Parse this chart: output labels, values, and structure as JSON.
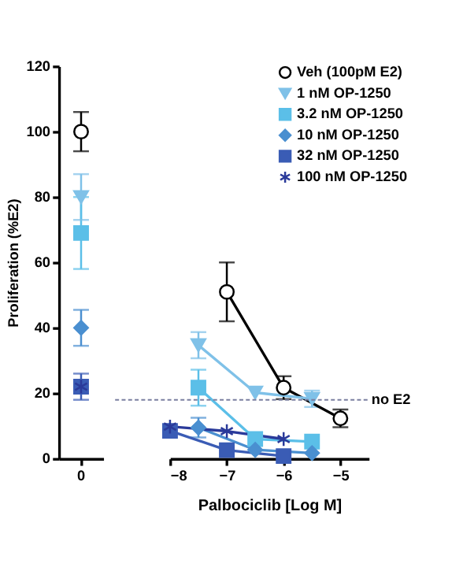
{
  "chart_data": [
    {
      "type": "scatter",
      "ylabel": "Proliferation (%E2)",
      "categories": [
        "0"
      ],
      "ylim": [
        0,
        120
      ],
      "yticks": [
        0,
        20,
        40,
        60,
        80,
        100,
        120
      ],
      "grid": false,
      "tick_labels": "xy",
      "series": [
        {
          "color": "#000000",
          "marker": "circle",
          "values": [
            100
          ],
          "errors": [
            6
          ]
        },
        {
          "color": "#7fc1e8",
          "marker": "triangle",
          "values": [
            80
          ],
          "errors": [
            7
          ]
        },
        {
          "color": "#5bbfe8",
          "marker": "square",
          "values": [
            69
          ],
          "errors": [
            11
          ]
        },
        {
          "color": "#4a8fd0",
          "marker": "diamond",
          "values": [
            40
          ],
          "errors": [
            5.5
          ]
        },
        {
          "color": "#3a5cb5",
          "marker": "square",
          "values": [
            22
          ],
          "errors": [
            4
          ]
        },
        {
          "color": "#2a3a9a",
          "marker": "cross",
          "values": [
            22
          ],
          "errors": [
            null
          ]
        }
      ]
    },
    {
      "type": "line",
      "xlabel": "Palbociclib [Log M]",
      "xlim": [
        -8,
        -4.5
      ],
      "xticks": [
        -8,
        -7,
        -6,
        -5
      ],
      "ylim": [
        0,
        120
      ],
      "grid": false,
      "legend": "top right",
      "tick_labels": "x",
      "line_style": "solid",
      "ref_lines": [
        {
          "axis": "y",
          "value": 18,
          "label": "no E2",
          "line_style": "dotted",
          "color": "#7a7fa0"
        }
      ],
      "series": [
        {
          "name": "Veh (100pM E2)",
          "color": "#000000",
          "marker": "circle",
          "x": [
            -7,
            -6,
            -5
          ],
          "values": [
            51,
            21.7,
            12.3
          ],
          "errors": [
            9,
            3.5,
            2.7
          ]
        },
        {
          "name": "1 nM OP-1250",
          "color": "#7fc1e8",
          "marker": "triangle",
          "x": [
            -7.5,
            -6.5,
            -5.5
          ],
          "values": [
            34.7,
            20.2,
            18.3
          ],
          "errors": [
            4,
            null,
            2.5
          ]
        },
        {
          "name": "3.2 nM OP-1250",
          "color": "#5bbfe8",
          "marker": "square",
          "x": [
            -7.5,
            -6.5,
            -5.5
          ],
          "values": [
            21.7,
            6,
            5.2
          ],
          "errors": [
            5.5,
            null,
            null
          ]
        },
        {
          "name": "10  nM OP-1250",
          "color": "#4a8fd0",
          "marker": "diamond",
          "x": [
            -7.5,
            -6.5,
            -5.5
          ],
          "values": [
            9.5,
            2.7,
            1.7
          ],
          "errors": [
            3,
            null,
            null
          ]
        },
        {
          "name": "32 nM OP-1250",
          "color": "#3a5cb5",
          "marker": "square",
          "x": [
            -8,
            -7,
            -6
          ],
          "values": [
            8.5,
            2.6,
            0.8
          ]
        },
        {
          "name": "100 nM OP-1250",
          "color": "#2a3a9a",
          "marker": "cross",
          "x": [
            -8,
            -7,
            -6
          ],
          "values": [
            9.8,
            8.4,
            6
          ]
        }
      ]
    }
  ]
}
